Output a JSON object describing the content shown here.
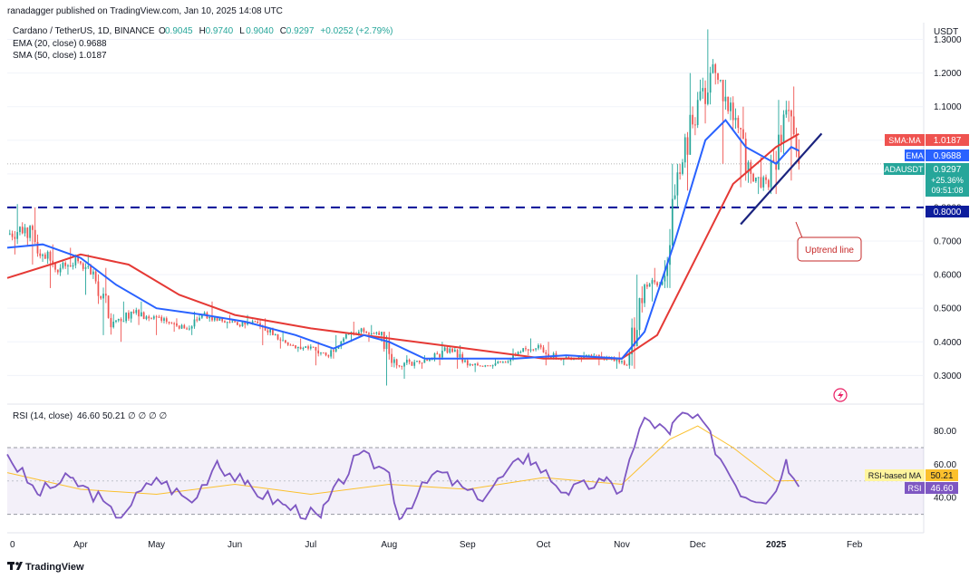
{
  "header": {
    "published_line": "ranadagger published on TradingView.com, Jan 10, 2025 14:08 UTC",
    "symbol_line": "Cardano / TetherUS, 1D, BINANCE",
    "ohlc": [
      {
        "label": "O",
        "value": "0.9045"
      },
      {
        "label": "H",
        "value": "0.9740"
      },
      {
        "label": "L",
        "value": "0.9040"
      },
      {
        "label": "C",
        "value": "0.9297"
      },
      {
        "label": "",
        "value": "+0.0252 (+2.79%)"
      }
    ],
    "ema_label": "EMA (20, close)",
    "ema_value": "0.9688",
    "sma_label": "SMA (50, close)",
    "sma_value": "1.0187"
  },
  "price_axis": {
    "currency": "USDT",
    "ticks": [
      "1.3000",
      "1.2000",
      "1.1000",
      "1.0000",
      "0.9000",
      "0.8000",
      "0.7000",
      "0.6000",
      "0.5000",
      "0.4000",
      "0.3000"
    ]
  },
  "price_labels": {
    "sma_tag": "SMA:MA",
    "sma_value": "1.0187",
    "ema_tag": "EMA",
    "ema_value": "0.9688",
    "symbol_tag": "ADAUSDT",
    "last_price": "0.9297",
    "change_pct": "+25.36%",
    "countdown": "09:51:08",
    "support_level": "0.8000"
  },
  "annotation": {
    "uptrend_label": "Uptrend line"
  },
  "rsi_pane": {
    "title": "RSI (14, close)",
    "rsi_value": "46.60",
    "ma_value": "50.21",
    "placeholders": "∅ ∅ ∅ ∅",
    "ticks": [
      "80.00",
      "60.00",
      "40.00"
    ],
    "ma_tag": "RSI-based MA",
    "rsi_tag": "RSI"
  },
  "time_axis": {
    "labels": [
      "0",
      "Apr",
      "May",
      "Jun",
      "Jul",
      "Aug",
      "Sep",
      "Oct",
      "Nov",
      "Dec",
      "2025",
      "Feb"
    ]
  },
  "footer": {
    "brand": "TradingView"
  },
  "colors": {
    "up": "#26a69a",
    "down": "#ef5350",
    "ema": "#2962ff",
    "sma": "#e53935",
    "support": "#0d1d9c",
    "trendline": "#1a237e",
    "rsi": "#7e57c2",
    "rsi_ma": "#fbc02d"
  },
  "chart_data": {
    "type": "candlestick",
    "symbol": "ADAUSDT",
    "ylim": [
      0.22,
      1.35
    ],
    "x_range": [
      "2024-03-03",
      "2025-02-28"
    ],
    "support_line": 0.8,
    "trendline": {
      "from": [
        "2024-12-18",
        0.75
      ],
      "to": [
        "2025-01-19",
        1.02
      ]
    },
    "ohlc_weekly": [
      [
        "2024-03-04",
        0.72,
        0.81,
        0.66,
        0.74
      ],
      [
        "2024-03-11",
        0.74,
        0.8,
        0.63,
        0.66
      ],
      [
        "2024-03-18",
        0.66,
        0.69,
        0.56,
        0.62
      ],
      [
        "2024-03-25",
        0.62,
        0.68,
        0.6,
        0.64
      ],
      [
        "2024-04-01",
        0.64,
        0.66,
        0.54,
        0.58
      ],
      [
        "2024-04-08",
        0.58,
        0.62,
        0.42,
        0.46
      ],
      [
        "2024-04-15",
        0.46,
        0.52,
        0.4,
        0.49
      ],
      [
        "2024-04-22",
        0.49,
        0.52,
        0.45,
        0.47
      ],
      [
        "2024-04-29",
        0.47,
        0.48,
        0.42,
        0.46
      ],
      [
        "2024-05-06",
        0.46,
        0.47,
        0.43,
        0.44
      ],
      [
        "2024-05-13",
        0.44,
        0.49,
        0.42,
        0.48
      ],
      [
        "2024-05-20",
        0.48,
        0.52,
        0.46,
        0.47
      ],
      [
        "2024-05-27",
        0.47,
        0.48,
        0.44,
        0.45
      ],
      [
        "2024-06-03",
        0.45,
        0.48,
        0.44,
        0.46
      ],
      [
        "2024-06-10",
        0.46,
        0.47,
        0.39,
        0.42
      ],
      [
        "2024-06-17",
        0.42,
        0.43,
        0.38,
        0.39
      ],
      [
        "2024-06-24",
        0.39,
        0.41,
        0.37,
        0.38
      ],
      [
        "2024-07-01",
        0.38,
        0.4,
        0.33,
        0.36
      ],
      [
        "2024-07-08",
        0.36,
        0.42,
        0.35,
        0.41
      ],
      [
        "2024-07-15",
        0.41,
        0.46,
        0.4,
        0.44
      ],
      [
        "2024-07-22",
        0.44,
        0.45,
        0.4,
        0.42
      ],
      [
        "2024-07-29",
        0.42,
        0.43,
        0.27,
        0.33
      ],
      [
        "2024-08-05",
        0.33,
        0.36,
        0.29,
        0.34
      ],
      [
        "2024-08-12",
        0.34,
        0.36,
        0.32,
        0.35
      ],
      [
        "2024-08-19",
        0.35,
        0.4,
        0.33,
        0.38
      ],
      [
        "2024-08-26",
        0.38,
        0.39,
        0.32,
        0.33
      ],
      [
        "2024-09-02",
        0.33,
        0.34,
        0.31,
        0.33
      ],
      [
        "2024-09-09",
        0.33,
        0.35,
        0.32,
        0.34
      ],
      [
        "2024-09-16",
        0.34,
        0.38,
        0.33,
        0.37
      ],
      [
        "2024-09-23",
        0.37,
        0.41,
        0.36,
        0.39
      ],
      [
        "2024-09-30",
        0.39,
        0.4,
        0.33,
        0.35
      ],
      [
        "2024-10-07",
        0.35,
        0.36,
        0.33,
        0.35
      ],
      [
        "2024-10-14",
        0.35,
        0.37,
        0.34,
        0.36
      ],
      [
        "2024-10-21",
        0.36,
        0.37,
        0.33,
        0.35
      ],
      [
        "2024-10-28",
        0.35,
        0.37,
        0.32,
        0.33
      ],
      [
        "2024-11-04",
        0.33,
        0.6,
        0.32,
        0.57
      ],
      [
        "2024-11-11",
        0.57,
        0.62,
        0.52,
        0.58
      ],
      [
        "2024-11-18",
        0.58,
        0.93,
        0.56,
        0.9
      ],
      [
        "2024-11-25",
        0.9,
        1.2,
        0.85,
        1.12
      ],
      [
        "2024-12-02",
        1.12,
        1.33,
        1.05,
        1.2
      ],
      [
        "2024-12-09",
        1.2,
        1.18,
        0.93,
        1.06
      ],
      [
        "2024-12-16",
        1.06,
        1.1,
        0.86,
        0.9
      ],
      [
        "2024-12-23",
        0.9,
        0.95,
        0.84,
        0.86
      ],
      [
        "2024-12-30",
        0.86,
        1.12,
        0.84,
        1.09
      ],
      [
        "2025-01-06",
        1.09,
        1.16,
        0.88,
        0.9297
      ]
    ],
    "series": [
      {
        "name": "EMA (20, close)",
        "points": [
          [
            "2024-03-03",
            0.68
          ],
          [
            "2024-03-17",
            0.69
          ],
          [
            "2024-04-01",
            0.65
          ],
          [
            "2024-04-15",
            0.57
          ],
          [
            "2024-05-01",
            0.5
          ],
          [
            "2024-05-20",
            0.48
          ],
          [
            "2024-06-05",
            0.46
          ],
          [
            "2024-06-25",
            0.42
          ],
          [
            "2024-07-10",
            0.38
          ],
          [
            "2024-07-22",
            0.42
          ],
          [
            "2024-08-01",
            0.4
          ],
          [
            "2024-08-15",
            0.35
          ],
          [
            "2024-09-01",
            0.35
          ],
          [
            "2024-09-20",
            0.35
          ],
          [
            "2024-10-10",
            0.36
          ],
          [
            "2024-11-01",
            0.35
          ],
          [
            "2024-11-10",
            0.43
          ],
          [
            "2024-11-22",
            0.7
          ],
          [
            "2024-12-04",
            1.0
          ],
          [
            "2024-12-12",
            1.06
          ],
          [
            "2024-12-20",
            0.98
          ],
          [
            "2025-01-01",
            0.93
          ],
          [
            "2025-01-07",
            0.98
          ],
          [
            "2025-01-10",
            0.9688
          ]
        ]
      },
      {
        "name": "SMA (50, close)",
        "points": [
          [
            "2024-03-03",
            0.59
          ],
          [
            "2024-03-20",
            0.63
          ],
          [
            "2024-04-01",
            0.66
          ],
          [
            "2024-04-20",
            0.63
          ],
          [
            "2024-05-10",
            0.54
          ],
          [
            "2024-06-01",
            0.48
          ],
          [
            "2024-07-01",
            0.44
          ],
          [
            "2024-08-01",
            0.41
          ],
          [
            "2024-09-01",
            0.38
          ],
          [
            "2024-10-01",
            0.35
          ],
          [
            "2024-11-01",
            0.35
          ],
          [
            "2024-11-15",
            0.42
          ],
          [
            "2024-12-01",
            0.66
          ],
          [
            "2024-12-15",
            0.87
          ],
          [
            "2025-01-01",
            0.98
          ],
          [
            "2025-01-10",
            1.0187
          ]
        ]
      }
    ],
    "rsi": {
      "name": "RSI (14, close)",
      "ylim": [
        20,
        95
      ],
      "levels": [
        70,
        30
      ],
      "points": [
        [
          "2024-03-03",
          66
        ],
        [
          "2024-03-15",
          42
        ],
        [
          "2024-03-28",
          52
        ],
        [
          "2024-04-10",
          38
        ],
        [
          "2024-04-15",
          28
        ],
        [
          "2024-05-01",
          52
        ],
        [
          "2024-05-15",
          37
        ],
        [
          "2024-05-25",
          62
        ],
        [
          "2024-06-05",
          48
        ],
        [
          "2024-06-20",
          36
        ],
        [
          "2024-07-05",
          28
        ],
        [
          "2024-07-20",
          66
        ],
        [
          "2024-08-01",
          55
        ],
        [
          "2024-08-05",
          27
        ],
        [
          "2024-08-20",
          56
        ],
        [
          "2024-09-05",
          39
        ],
        [
          "2024-09-25",
          66
        ],
        [
          "2024-10-10",
          43
        ],
        [
          "2024-10-25",
          50
        ],
        [
          "2024-11-01",
          44
        ],
        [
          "2024-11-10",
          88
        ],
        [
          "2024-11-20",
          78
        ],
        [
          "2024-11-25",
          91
        ],
        [
          "2024-12-05",
          82
        ],
        [
          "2024-12-12",
          58
        ],
        [
          "2024-12-20",
          40
        ],
        [
          "2024-12-30",
          40
        ],
        [
          "2025-01-05",
          63
        ],
        [
          "2025-01-10",
          46.6
        ]
      ],
      "ma_points": [
        [
          "2024-03-03",
          55
        ],
        [
          "2024-04-01",
          45
        ],
        [
          "2024-05-01",
          42
        ],
        [
          "2024-06-01",
          48
        ],
        [
          "2024-07-01",
          42
        ],
        [
          "2024-08-01",
          48
        ],
        [
          "2024-09-01",
          45
        ],
        [
          "2024-10-01",
          52
        ],
        [
          "2024-11-01",
          48
        ],
        [
          "2024-11-20",
          75
        ],
        [
          "2024-12-01",
          83
        ],
        [
          "2024-12-15",
          70
        ],
        [
          "2025-01-01",
          50
        ],
        [
          "2025-01-10",
          50.21
        ]
      ]
    }
  }
}
